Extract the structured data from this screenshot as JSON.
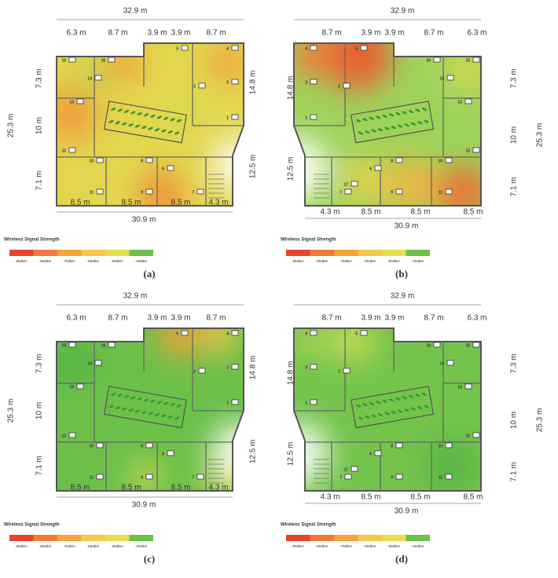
{
  "panels": [
    {
      "caption": "(a)",
      "mirrored": false,
      "dimensions": [
        "32.9 m",
        "6.3 m",
        "8.7 m",
        "3.9 m",
        "3.9 m",
        "8.7 m",
        "25.3 m",
        "7.3 m",
        "10 m",
        "7.1 m",
        "14.8 m",
        "12.5 m",
        "8.5 m",
        "8.5 m",
        "8.5 m",
        "4.3 m",
        "30.9 m"
      ],
      "devices": [
        "1",
        "2",
        "3",
        "4",
        "5",
        "6",
        "7",
        "8",
        "9",
        "10",
        "11",
        "12",
        "13",
        "14",
        "15",
        "16"
      ]
    },
    {
      "caption": "(b)",
      "mirrored": true,
      "dimensions": [
        "32.9 m",
        "8.7 m",
        "3.9 m",
        "3.9 m",
        "8.7 m",
        "6.3 m",
        "14.8 m",
        "12.5 m",
        "7.3 m",
        "10 m",
        "25.3 m",
        "7.1 m",
        "4.3 m",
        "8.5 m",
        "8.5 m",
        "8.5 m",
        "30.9 m"
      ],
      "devices": [
        "1",
        "2",
        "3",
        "4",
        "5",
        "6",
        "7",
        "8",
        "9",
        "10",
        "11",
        "12",
        "13",
        "14",
        "15",
        "16",
        "17"
      ]
    },
    {
      "caption": "(c)",
      "mirrored": false,
      "dimensions": [
        "32.9 m",
        "6.3 m",
        "8.7 m",
        "3.9 m",
        "3.9 m",
        "8.7 m",
        "25.3 m",
        "7.3 m",
        "10 m",
        "7.1 m",
        "14.8 m",
        "12.5 m",
        "8.5 m",
        "8.5 m",
        "8.5 m",
        "4.3 m",
        "30.9 m"
      ],
      "devices": [
        "1",
        "2",
        "3",
        "4",
        "5",
        "6",
        "7",
        "8",
        "9",
        "10",
        "11",
        "12",
        "13",
        "14",
        "15",
        "16"
      ]
    },
    {
      "caption": "(d)",
      "mirrored": true,
      "dimensions": [
        "32.9 m",
        "8.7 m",
        "3.9 m",
        "3.9 m",
        "8.7 m",
        "6.3 m",
        "14.8 m",
        "12.5 m",
        "7.3 m",
        "10 m",
        "25.3 m",
        "7.1 m",
        "4.3 m",
        "8.5 m",
        "8.5 m",
        "8.5 m",
        "30.9 m"
      ],
      "devices": [
        "1",
        "2",
        "3",
        "4",
        "5",
        "6",
        "7",
        "8",
        "9",
        "10",
        "11",
        "12",
        "13",
        "14",
        "15",
        "16",
        "17"
      ]
    }
  ],
  "legend": {
    "title": "Wireless Signal Strength",
    "labels": [
      "-95dBm",
      "-85dBm",
      "-75dBm",
      "-65dBm",
      "-55dBm",
      "-45dBm"
    ],
    "colors": [
      "#e8452c",
      "#f07a3a",
      "#f5a33c",
      "#f2c94c",
      "#e3df4e",
      "#6cc04a"
    ]
  }
}
